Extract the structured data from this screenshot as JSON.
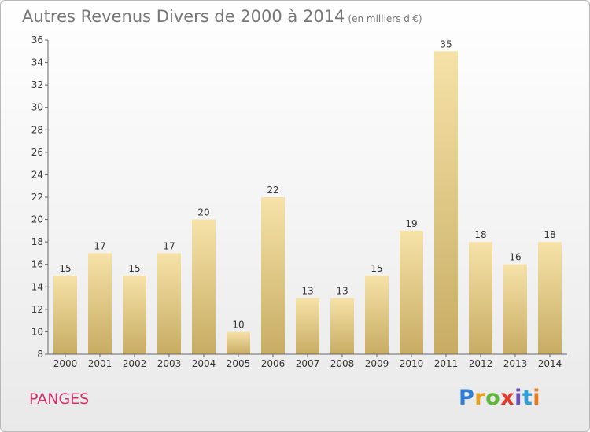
{
  "title": "Autres Revenus Divers de 2000 à 2014",
  "unit_note": "(en milliers d'€)",
  "location": "PANGES",
  "logo_text": "Proxiti",
  "colors": {
    "bar_light": "#f6e2a8",
    "bar_dark": "#c7ac63",
    "location": "#d0306a",
    "axis": "#666666"
  },
  "chart_data": {
    "type": "bar",
    "title": "Autres Revenus Divers de 2000 à 2014",
    "subtitle": "(en milliers d'€)",
    "categories": [
      "2000",
      "2001",
      "2002",
      "2003",
      "2004",
      "2005",
      "2006",
      "2007",
      "2008",
      "2009",
      "2010",
      "2011",
      "2012",
      "2013",
      "2014"
    ],
    "values": [
      15,
      17,
      15,
      17,
      20,
      10,
      22,
      13,
      13,
      15,
      19,
      35,
      18,
      16,
      18
    ],
    "ylim": [
      8,
      36
    ],
    "yticks": [
      8,
      10,
      12,
      14,
      16,
      18,
      20,
      22,
      24,
      26,
      28,
      30,
      32,
      34,
      36
    ],
    "grid": false,
    "data_labels": true
  }
}
